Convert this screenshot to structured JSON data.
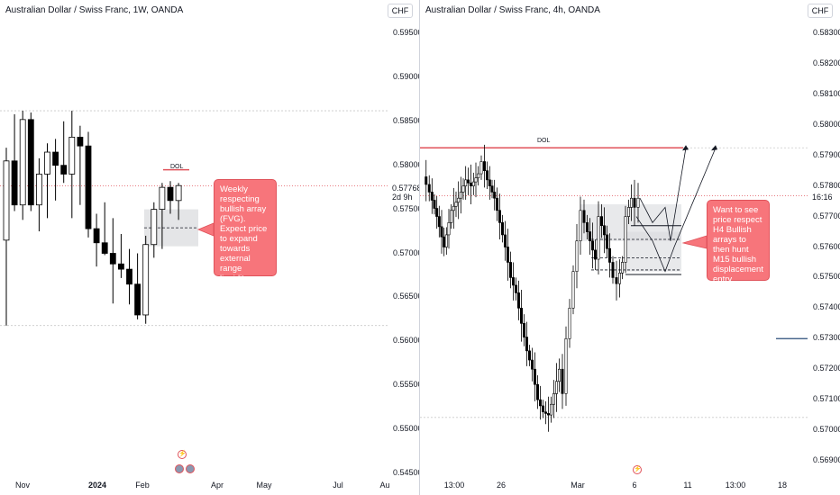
{
  "colors": {
    "up": "#ffffff",
    "down": "#000000",
    "wick": "#000000",
    "dol_line": "#e0525a",
    "dotted_red": "#e0525a",
    "note_bg": "#f7757b",
    "fvg_box": "#d9dadd",
    "axis_text": "#131722"
  },
  "left": {
    "title": "Australian Dollar / Swiss Franc, 1W, OANDA",
    "currency": "CHF",
    "price_labels": [
      "0.59500",
      "0.59000",
      "0.58500",
      "0.58000",
      "0.57500",
      "0.57000",
      "0.56500",
      "0.56000",
      "0.55500",
      "0.55000",
      "0.54500"
    ],
    "time_labels": [
      "Nov",
      "2024",
      "Feb",
      "Apr",
      "May",
      "Jul",
      "Au"
    ],
    "current_price": "0.57768",
    "countdown": "2d 9h",
    "dol_label": "DOL",
    "note": "Weekly respecting bullish array (FVG). Expect price to expand towards external range liquidity above old weekly swing high.",
    "chart_data": {
      "type": "candlestick",
      "title": "Australian Dollar / Swiss Franc, 1W, OANDA",
      "ylim": [
        0.5445,
        0.5975
      ],
      "ohlc": [
        [
          0.5715,
          0.582,
          0.5618,
          0.5805
        ],
        [
          0.5805,
          0.5858,
          0.5748,
          0.5755
        ],
        [
          0.5755,
          0.5862,
          0.5738,
          0.5852
        ],
        [
          0.5852,
          0.586,
          0.5748,
          0.5755
        ],
        [
          0.5755,
          0.5808,
          0.5725,
          0.579
        ],
        [
          0.579,
          0.5825,
          0.574,
          0.5815
        ],
        [
          0.5815,
          0.583,
          0.576,
          0.58
        ],
        [
          0.58,
          0.585,
          0.578,
          0.579
        ],
        [
          0.579,
          0.5862,
          0.574,
          0.5832
        ],
        [
          0.5832,
          0.5845,
          0.5755,
          0.5822
        ],
        [
          0.5822,
          0.5838,
          0.5718,
          0.5728
        ],
        [
          0.5728,
          0.5745,
          0.5685,
          0.5712
        ],
        [
          0.5712,
          0.5758,
          0.5698,
          0.57
        ],
        [
          0.57,
          0.574,
          0.5643,
          0.5688
        ],
        [
          0.5688,
          0.5722,
          0.5672,
          0.5682
        ],
        [
          0.5682,
          0.5705,
          0.5642,
          0.5665
        ],
        [
          0.5665,
          0.57,
          0.5625,
          0.563
        ],
        [
          0.563,
          0.572,
          0.562,
          0.571
        ],
        [
          0.571,
          0.5758,
          0.5695,
          0.575
        ],
        [
          0.575,
          0.578,
          0.5705,
          0.5775
        ],
        [
          0.5775,
          0.5782,
          0.5745,
          0.576
        ],
        [
          0.576,
          0.578,
          0.5738,
          0.5777
        ]
      ],
      "levels": [
        {
          "name": "old weekly swing high",
          "value": 0.5862
        },
        {
          "name": "weekly low",
          "value": 0.5618
        },
        {
          "name": "DOL",
          "value": 0.5795
        },
        {
          "name": "current price",
          "value": 0.57768
        }
      ],
      "fvg": [
        0.5708,
        0.575
      ]
    }
  },
  "right": {
    "title": "Australian Dollar / Swiss Franc, 4h, OANDA",
    "currency": "CHF",
    "price_labels": [
      "0.58300",
      "0.58200",
      "0.58100",
      "0.58000",
      "0.57900",
      "0.57800",
      "0.57700",
      "0.57600",
      "0.57500",
      "0.57400",
      "0.57300",
      "0.57200",
      "0.57100",
      "0.57000",
      "0.56900"
    ],
    "time_labels": [
      "13:00",
      "26",
      "Mar",
      "6",
      "11",
      "13:00",
      "18"
    ],
    "countdown": "16:16",
    "dol_label": "DOL",
    "note": "Want to see price respect H4 Bullish arrays to then hunt M15 bullish displacement entry.",
    "chart_data": {
      "type": "candlestick",
      "title": "Australian Dollar / Swiss Franc, 4h, OANDA",
      "ylim": [
        0.5686,
        0.5838
      ],
      "levels": [
        {
          "name": "DOL",
          "value": 0.57925
        },
        {
          "name": "swing low",
          "value": 0.57042
        },
        {
          "name": "current price",
          "value": 0.57768
        }
      ],
      "fvg_zones": [
        [
          0.5762,
          0.5774
        ],
        [
          0.5752,
          0.5762
        ]
      ]
    }
  }
}
